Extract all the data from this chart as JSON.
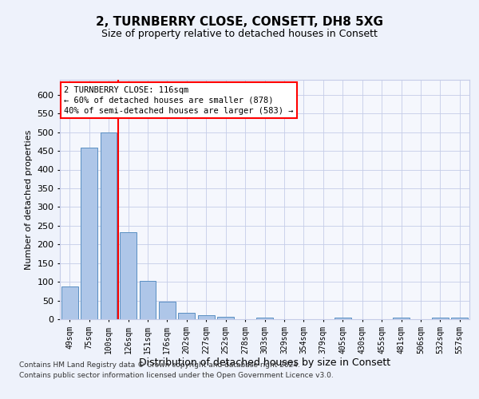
{
  "title": "2, TURNBERRY CLOSE, CONSETT, DH8 5XG",
  "subtitle": "Size of property relative to detached houses in Consett",
  "xlabel": "Distribution of detached houses by size in Consett",
  "ylabel": "Number of detached properties",
  "categories": [
    "49sqm",
    "75sqm",
    "100sqm",
    "126sqm",
    "151sqm",
    "176sqm",
    "202sqm",
    "227sqm",
    "252sqm",
    "278sqm",
    "303sqm",
    "329sqm",
    "354sqm",
    "379sqm",
    "405sqm",
    "430sqm",
    "455sqm",
    "481sqm",
    "506sqm",
    "532sqm",
    "557sqm"
  ],
  "values": [
    88,
    458,
    500,
    233,
    103,
    47,
    18,
    11,
    7,
    0,
    4,
    0,
    0,
    0,
    4,
    0,
    0,
    4,
    0,
    4,
    4
  ],
  "bar_color": "#aec6e8",
  "bar_edge_color": "#5a8fc2",
  "vline_index": 2,
  "vline_color": "red",
  "annotation_text": "2 TURNBERRY CLOSE: 116sqm\n← 60% of detached houses are smaller (878)\n40% of semi-detached houses are larger (583) →",
  "annotation_box_color": "white",
  "annotation_box_edge_color": "red",
  "ylim": [
    0,
    640
  ],
  "yticks": [
    0,
    50,
    100,
    150,
    200,
    250,
    300,
    350,
    400,
    450,
    500,
    550,
    600
  ],
  "footer_line1": "Contains HM Land Registry data © Crown copyright and database right 2024.",
  "footer_line2": "Contains public sector information licensed under the Open Government Licence v3.0.",
  "background_color": "#eef2fb",
  "plot_bg_color": "#f5f7fd",
  "grid_color": "#c5cce8",
  "title_fontsize": 11,
  "subtitle_fontsize": 9,
  "ylabel_fontsize": 8,
  "xlabel_fontsize": 9,
  "tick_fontsize": 8,
  "xtick_fontsize": 7,
  "footer_fontsize": 6.5,
  "annot_fontsize": 7.5
}
